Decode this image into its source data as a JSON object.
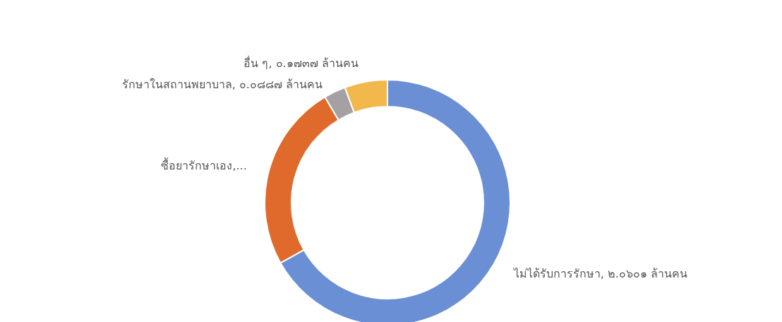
{
  "chart_data": {
    "type": "donut",
    "categories": [
      "ไม่ได้รับการรักษา",
      "ซื้อยารักษาเอง,...",
      "รักษาในสถานพยาบาล",
      "อื่น ๆ"
    ],
    "values": [
      2.0601,
      0.76,
      0.0887,
      0.1737
    ],
    "value_labels": [
      "๒.๐๖๐๑ ล้านคน",
      null,
      "๐.๐๘๘๗ ล้านคน",
      "๐.๑๗๓๗ ล้านคน"
    ],
    "colors": [
      "#6a8fd4",
      "#e06a2c",
      "#a5a1a3",
      "#f2b84b"
    ]
  }
}
